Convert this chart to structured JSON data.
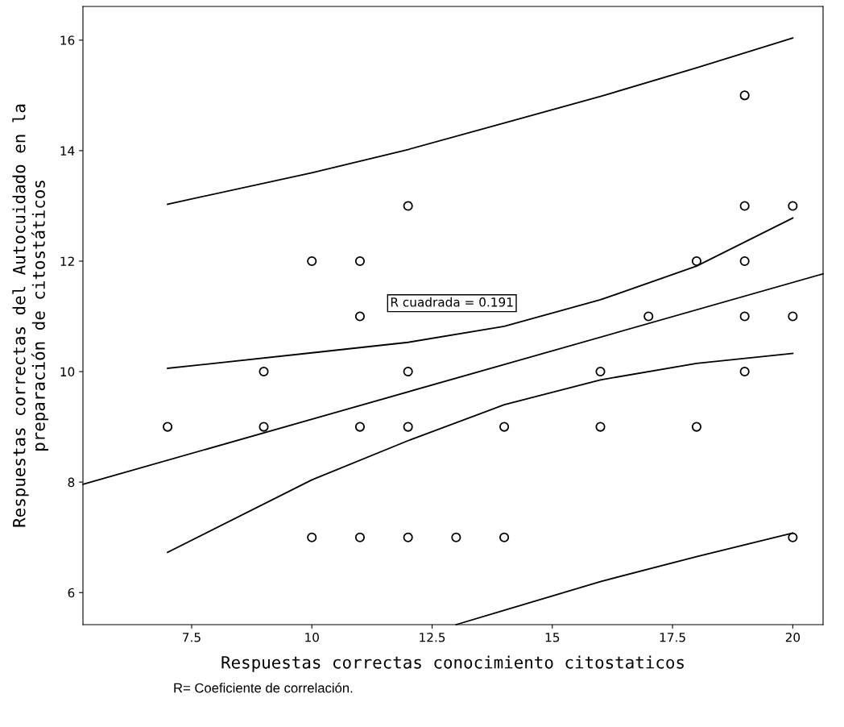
{
  "chart_data": {
    "type": "scatter",
    "xlabel": "Respuestas correctas conocimiento citostaticos",
    "ylabel": "Respuestas correctas del Autocuidado en la\npreparación de citostáticos",
    "xlim": [
      5.24,
      20.63
    ],
    "ylim": [
      5.42,
      16.61
    ],
    "xticks": [
      7.5,
      10,
      12.5,
      15,
      17.5,
      20
    ],
    "yticks": [
      6,
      8,
      10,
      12,
      14,
      16
    ],
    "grid": false,
    "legend": false,
    "series": [
      {
        "color": "#000000",
        "marker": "circle",
        "x": [
          7,
          9,
          9,
          10,
          10,
          11,
          11,
          11,
          11,
          12,
          12,
          12,
          12,
          13,
          14,
          14,
          16,
          16,
          17,
          18,
          18,
          19,
          19,
          19,
          19,
          19,
          20,
          20,
          20
        ],
        "values": [
          9,
          10,
          9,
          12,
          7,
          12,
          11,
          9,
          7,
          13,
          10,
          9,
          7,
          7,
          9,
          7,
          10,
          9,
          11,
          12,
          9,
          15,
          13,
          12,
          11,
          10,
          13,
          11,
          7
        ]
      },
      {
        "type": "line",
        "color": "#000000",
        "x": [
          5.24,
          20.63
        ],
        "values": [
          7.96,
          11.77
        ]
      },
      {
        "type": "line",
        "color": "#000000",
        "x": [
          7,
          10,
          12,
          14,
          16,
          18,
          20
        ],
        "values": [
          10.06,
          10.34,
          10.53,
          10.82,
          11.3,
          11.91,
          12.78
        ]
      },
      {
        "type": "line",
        "color": "#000000",
        "x": [
          7,
          10,
          12,
          14,
          16,
          18,
          20
        ],
        "values": [
          6.73,
          8.04,
          8.75,
          9.4,
          9.85,
          10.15,
          10.33
        ]
      },
      {
        "type": "line",
        "color": "#000000",
        "x": [
          7,
          10,
          12,
          14,
          16,
          18,
          20
        ],
        "values": [
          13.03,
          13.6,
          14.02,
          14.5,
          14.98,
          15.5,
          16.04
        ]
      },
      {
        "type": "line",
        "color": "#000000",
        "x": [
          13,
          16,
          18,
          20
        ],
        "values": [
          5.42,
          6.2,
          6.65,
          7.08
        ]
      }
    ],
    "annotations": [
      "R cuadrada = 0.191",
      "R= Coeficiente de correlación."
    ]
  }
}
